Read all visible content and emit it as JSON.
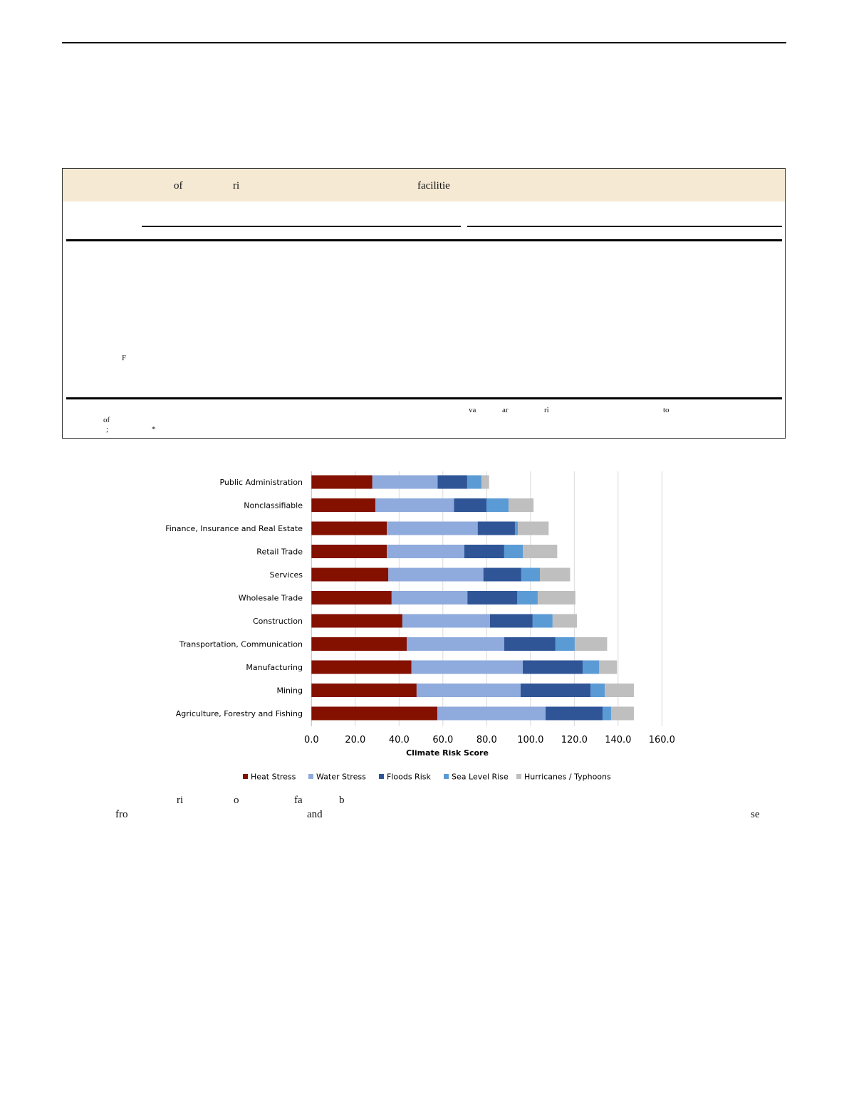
{
  "table": {
    "header_fragments": [
      "of",
      "ri",
      "facilitie"
    ],
    "body_fragments": [
      "F"
    ],
    "note_fragments": [
      "va",
      "ar",
      "ri",
      "to",
      "of",
      ";",
      "*"
    ]
  },
  "caption": {
    "line1_fragments": [
      "ri",
      "o",
      "fa",
      "b"
    ],
    "line2_fragments": [
      "fro",
      "and",
      "se"
    ]
  },
  "chart_data": {
    "type": "bar",
    "orientation": "horizontal",
    "stacked": true,
    "categories": [
      "Public Administration",
      "Nonclassifiable",
      "Finance, Insurance and Real Estate",
      "Retail Trade",
      "Services",
      "Wholesale Trade",
      "Construction",
      "Transportation, Communication",
      "Manufacturing",
      "Mining",
      "Agriculture, Forestry and Fishing"
    ],
    "series": [
      {
        "name": "Heat Stress",
        "color": "#841000",
        "values": [
          27.8,
          29.2,
          34.4,
          34.4,
          35.1,
          36.6,
          41.5,
          43.5,
          45.6,
          48.0,
          57.5
        ]
      },
      {
        "name": "Water Stress",
        "color": "#8faadc",
        "values": [
          29.8,
          35.9,
          41.5,
          35.4,
          43.4,
          34.6,
          40.0,
          44.5,
          50.9,
          47.5,
          49.4
        ]
      },
      {
        "name": "Floods Risk",
        "color": "#2f5597",
        "values": [
          13.5,
          14.8,
          17.0,
          18.2,
          17.3,
          22.8,
          19.5,
          23.4,
          27.3,
          31.9,
          26.0
        ]
      },
      {
        "name": "Sea Level Rise",
        "color": "#5b9bd5",
        "values": [
          6.5,
          10.1,
          1.3,
          8.5,
          8.5,
          9.3,
          9.1,
          8.8,
          7.6,
          6.5,
          3.9
        ]
      },
      {
        "name": "Hurricanes / Typhoons",
        "color": "#bfbfbf",
        "values": [
          3.5,
          11.4,
          14.1,
          15.7,
          13.8,
          17.2,
          11.1,
          14.8,
          8.1,
          13.3,
          10.4
        ]
      }
    ],
    "xlabel": "Climate Risk Score",
    "ylabel": "",
    "xlim": [
      0,
      160
    ],
    "xticks": [
      "0.0",
      "20.0",
      "40.0",
      "60.0",
      "80.0",
      "100.0",
      "120.0",
      "140.0",
      "160.0"
    ],
    "grid": "vertical",
    "legend": "bottom"
  }
}
